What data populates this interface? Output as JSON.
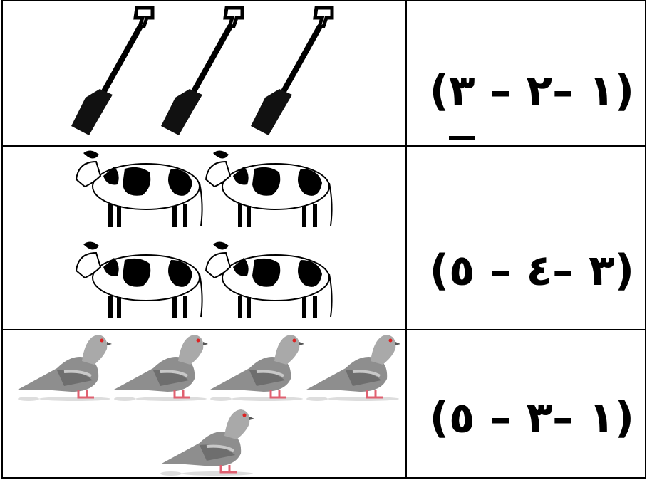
{
  "rows": [
    {
      "parts": [
        "(",
        "٣",
        " – ",
        "٢",
        "– ",
        "١",
        ")"
      ],
      "underlined": 1
    },
    {
      "parts": [
        "(",
        "٥",
        " – ",
        "٤",
        "– ",
        "٣",
        ")"
      ]
    },
    {
      "parts": [
        "(",
        "٥",
        " – ",
        "٣",
        "– ",
        "١",
        ")"
      ]
    }
  ]
}
